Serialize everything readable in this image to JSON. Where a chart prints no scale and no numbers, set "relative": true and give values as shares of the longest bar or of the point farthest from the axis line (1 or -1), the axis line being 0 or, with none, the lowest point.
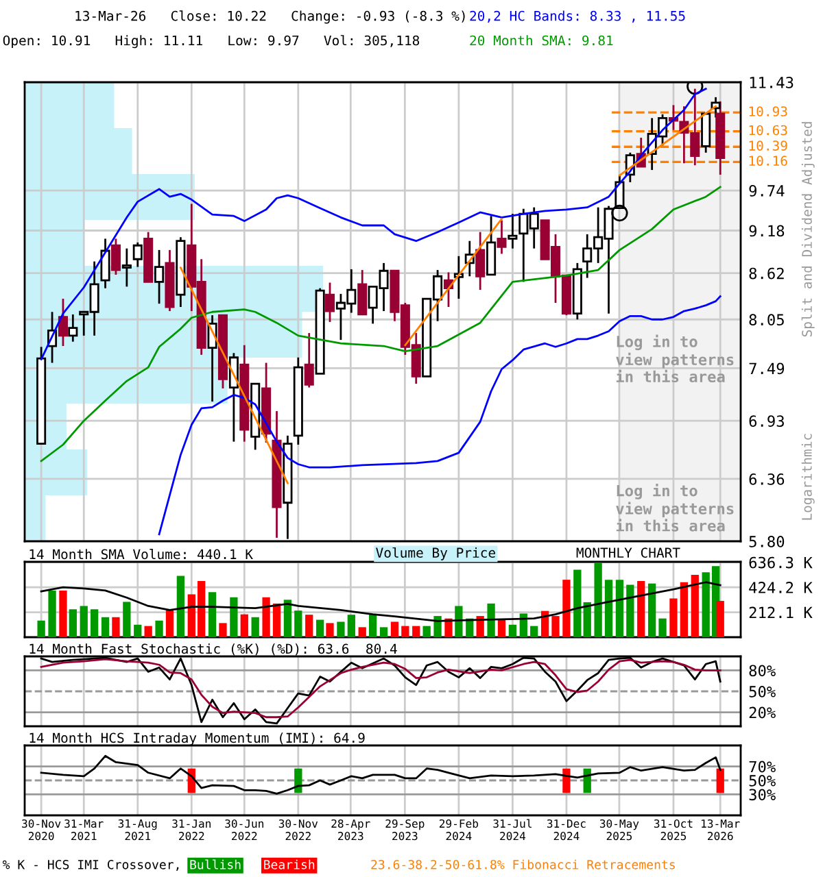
{
  "chart_data": [
    {
      "type": "candlestick",
      "title": "13-Mar-26   Close: 10.22   Change: -0.93 (-8.3 %)",
      "subtitle": "Open: 10.91   High: 11.11   Low: 9.97   Vol: 305,118",
      "ylabel": "Split and Dividend Adjusted",
      "x": [
        "2020-11-30",
        "2020-12-31",
        "2021-01-31",
        "2021-02-28",
        "2021-03-31",
        "2021-04-30",
        "2021-05-31",
        "2021-06-30",
        "2021-07-31",
        "2021-08-31",
        "2021-09-30",
        "2021-10-31",
        "2021-11-30",
        "2021-12-31",
        "2022-01-31",
        "2022-02-28",
        "2022-03-31",
        "2022-04-30",
        "2022-05-31",
        "2022-06-30",
        "2022-07-31",
        "2022-08-31",
        "2022-09-30",
        "2022-10-31",
        "2022-11-30",
        "2022-12-31",
        "2023-01-31",
        "2023-02-28",
        "2023-03-31",
        "2023-04-30",
        "2023-05-31",
        "2023-06-30",
        "2023-07-31",
        "2023-08-31",
        "2023-09-30",
        "2023-10-31",
        "2023-11-30",
        "2023-12-31",
        "2024-01-31",
        "2024-02-29",
        "2024-03-31",
        "2024-04-30",
        "2024-05-31",
        "2024-06-30",
        "2024-07-31",
        "2024-08-31",
        "2024-09-30",
        "2024-10-31",
        "2024-11-30",
        "2024-12-31",
        "2025-01-31",
        "2025-02-28",
        "2025-03-31",
        "2025-04-30",
        "2025-05-31",
        "2025-06-30",
        "2025-07-31",
        "2025-08-31",
        "2025-09-30",
        "2025-10-31",
        "2025-11-30",
        "2025-12-31",
        "2026-01-31",
        "2026-02-28",
        "2026-03-13"
      ],
      "ohlc": [
        [
          6.7,
          7.73,
          6.7,
          7.6
        ],
        [
          7.74,
          8.14,
          7.55,
          7.92
        ],
        [
          8.08,
          8.3,
          7.74,
          7.86
        ],
        [
          7.86,
          8.11,
          7.79,
          7.95
        ],
        [
          8.11,
          8.14,
          7.86,
          8.14
        ],
        [
          8.14,
          8.77,
          7.86,
          8.48
        ],
        [
          8.53,
          9.07,
          8.43,
          8.91
        ],
        [
          8.98,
          9.07,
          8.6,
          8.66
        ],
        [
          8.69,
          8.94,
          8.45,
          8.72
        ],
        [
          8.8,
          9.02,
          8.7,
          8.98
        ],
        [
          9.07,
          9.16,
          8.51,
          8.51
        ],
        [
          8.51,
          8.92,
          8.24,
          8.7
        ],
        [
          8.75,
          8.92,
          8.15,
          8.2
        ],
        [
          8.35,
          9.09,
          8.2,
          9.04
        ],
        [
          8.98,
          9.55,
          8.15,
          8.45
        ],
        [
          8.51,
          8.8,
          7.64,
          7.72
        ],
        [
          7.72,
          8.1,
          7.13,
          8.0
        ],
        [
          8.1,
          8.1,
          7.27,
          7.37
        ],
        [
          7.28,
          7.66,
          6.72,
          7.61
        ],
        [
          7.53,
          7.75,
          6.72,
          6.84
        ],
        [
          6.77,
          7.32,
          6.64,
          7.32
        ],
        [
          7.27,
          7.55,
          6.71,
          6.8
        ],
        [
          6.73,
          7.03,
          5.83,
          6.1
        ],
        [
          6.14,
          6.78,
          5.82,
          6.7
        ],
        [
          6.78,
          7.61,
          6.69,
          7.5
        ],
        [
          7.53,
          7.89,
          7.28,
          7.31
        ],
        [
          7.43,
          8.43,
          7.43,
          8.4
        ],
        [
          8.35,
          8.5,
          8.02,
          8.15
        ],
        [
          8.18,
          8.36,
          7.81,
          8.25
        ],
        [
          8.24,
          8.67,
          8.13,
          8.41
        ],
        [
          8.48,
          8.66,
          8.11,
          8.11
        ],
        [
          8.19,
          8.45,
          8.0,
          8.45
        ],
        [
          8.43,
          8.75,
          8.15,
          8.65
        ],
        [
          8.65,
          8.65,
          8.03,
          8.14
        ],
        [
          8.22,
          8.25,
          7.64,
          7.73
        ],
        [
          7.75,
          7.89,
          7.32,
          7.4
        ],
        [
          7.4,
          8.3,
          7.4,
          8.3
        ],
        [
          8.29,
          8.66,
          8.03,
          8.58
        ],
        [
          8.53,
          8.63,
          8.2,
          8.43
        ],
        [
          8.57,
          8.84,
          8.3,
          8.61
        ],
        [
          8.75,
          9.04,
          8.58,
          8.86
        ],
        [
          8.92,
          9.16,
          8.41,
          8.58
        ],
        [
          8.6,
          9.38,
          8.6,
          9.02
        ],
        [
          9.07,
          9.32,
          8.87,
          8.96
        ],
        [
          9.07,
          9.41,
          8.94,
          9.11
        ],
        [
          9.14,
          9.48,
          8.51,
          9.41
        ],
        [
          9.21,
          9.5,
          8.94,
          9.41
        ],
        [
          9.32,
          9.32,
          8.8,
          8.8
        ],
        [
          8.96,
          9.13,
          8.25,
          8.58
        ],
        [
          8.59,
          8.59,
          8.1,
          8.12
        ],
        [
          8.12,
          8.75,
          8.05,
          8.67
        ],
        [
          8.77,
          9.13,
          8.56,
          8.94
        ],
        [
          8.94,
          9.5,
          8.75,
          9.09
        ],
        [
          9.07,
          9.52,
          8.12,
          9.48
        ],
        [
          9.49,
          9.96,
          9.48,
          9.86
        ],
        [
          9.97,
          10.3,
          9.86,
          10.26
        ],
        [
          10.28,
          10.53,
          10.09,
          10.09
        ],
        [
          10.28,
          10.84,
          10.04,
          10.59
        ],
        [
          10.55,
          10.9,
          10.41,
          10.84
        ],
        [
          10.84,
          11.05,
          10.65,
          10.8
        ],
        [
          10.78,
          11.03,
          10.14,
          10.61
        ],
        [
          10.6,
          11.32,
          10.11,
          10.25
        ],
        [
          10.4,
          10.91,
          10.3,
          10.91
        ],
        [
          11.0,
          11.18,
          10.85,
          11.09
        ],
        [
          10.91,
          11.11,
          9.97,
          10.22
        ]
      ],
      "colors": [
        "#ffffff",
        "#ffffff",
        "#990033",
        "#ffffff",
        "#ffffff",
        "#ffffff",
        "#ffffff",
        "#990033",
        "#ffffff",
        "#ffffff",
        "#990033",
        "#ffffff",
        "#990033",
        "#ffffff",
        "#990033",
        "#990033",
        "#ffffff",
        "#990033",
        "#ffffff",
        "#990033",
        "#ffffff",
        "#990033",
        "#990033",
        "#ffffff",
        "#ffffff",
        "#990033",
        "#ffffff",
        "#990033",
        "#ffffff",
        "#ffffff",
        "#990033",
        "#ffffff",
        "#ffffff",
        "#990033",
        "#990033",
        "#990033",
        "#ffffff",
        "#ffffff",
        "#990033",
        "#ffffff",
        "#ffffff",
        "#990033",
        "#ffffff",
        "#990033",
        "#ffffff",
        "#ffffff",
        "#ffffff",
        "#990033",
        "#990033",
        "#990033",
        "#ffffff",
        "#ffffff",
        "#ffffff",
        "#ffffff",
        "#ffffff",
        "#ffffff",
        "#990033",
        "#ffffff",
        "#ffffff",
        "#990033",
        "#990033",
        "#990033",
        "#ffffff",
        "#ffffff",
        "#990033"
      ],
      "series": [
        {
          "type": "line",
          "name": "20,2 HC Bands: 8.33 , 11.55",
          "color": "#0000ff",
          "x": [
            "2020-11-30",
            "2021-01-31",
            "2021-03-31",
            "2021-07-31",
            "2021-08-31",
            "2021-10-31",
            "2021-11-30",
            "2021-12-31",
            "2022-01-31",
            "2022-03-31",
            "2022-05-31",
            "2022-06-30",
            "2022-08-31",
            "2022-09-30",
            "2022-10-31",
            "2022-11-30",
            "2023-01-31",
            "2023-03-31",
            "2023-05-31",
            "2023-07-31",
            "2023-08-31",
            "2023-10-31",
            "2023-12-31",
            "2024-02-29",
            "2024-04-30",
            "2024-06-30",
            "2024-08-31",
            "2024-10-31",
            "2024-12-31",
            "2025-02-28",
            "2025-04-30",
            "2025-05-31",
            "2025-06-30",
            "2025-07-31",
            "2025-09-30",
            "2025-11-30",
            "2025-12-31",
            "2026-01-31"
          ],
          "values": [
            7.59,
            8.12,
            8.44,
            9.36,
            9.58,
            9.76,
            9.65,
            9.69,
            9.61,
            9.4,
            9.38,
            9.31,
            9.47,
            9.63,
            9.67,
            9.63,
            9.49,
            9.36,
            9.25,
            9.25,
            9.13,
            9.04,
            9.16,
            9.29,
            9.43,
            9.36,
            9.41,
            9.45,
            9.47,
            9.5,
            9.65,
            9.84,
            10.02,
            10.26,
            10.65,
            10.97,
            11.23,
            11.32
          ]
        },
        {
          "type": "line",
          "color": "#0000ff",
          "x": [
            "2021-10-31",
            "2021-11-30",
            "2021-12-31",
            "2022-01-31",
            "2022-02-28",
            "2022-03-31",
            "2022-04-30",
            "2022-05-31",
            "2022-06-30",
            "2022-07-31",
            "2022-09-30",
            "2022-10-31",
            "2022-11-30",
            "2022-12-31",
            "2023-02-28",
            "2023-05-31",
            "2023-10-31",
            "2023-12-31",
            "2024-02-29",
            "2024-04-30",
            "2024-05-31",
            "2024-06-30",
            "2024-07-31",
            "2024-08-31",
            "2024-10-31",
            "2024-11-30",
            "2024-12-31",
            "2025-01-31",
            "2025-02-28",
            "2025-03-31",
            "2025-04-30",
            "2025-05-31",
            "2025-06-30",
            "2025-07-31",
            "2025-08-31",
            "2025-09-30",
            "2025-10-31",
            "2025-11-30",
            "2025-12-31",
            "2026-01-31",
            "2026-02-28",
            "2026-03-13"
          ],
          "values": [
            5.86,
            6.21,
            6.59,
            6.89,
            7.06,
            7.07,
            7.14,
            7.2,
            7.17,
            7.1,
            6.72,
            6.56,
            6.5,
            6.47,
            6.47,
            6.49,
            6.51,
            6.53,
            6.61,
            6.92,
            7.24,
            7.48,
            7.58,
            7.7,
            7.77,
            7.73,
            7.77,
            7.82,
            7.82,
            7.86,
            7.91,
            8.03,
            8.09,
            8.09,
            8.05,
            8.05,
            8.08,
            8.15,
            8.18,
            8.22,
            8.27,
            8.33
          ]
        },
        {
          "type": "line",
          "name": "20 Month SMA: 9.81",
          "color": "#009900",
          "x": [
            "2020-11-30",
            "2021-01-31",
            "2021-03-31",
            "2021-05-31",
            "2021-07-31",
            "2021-09-30",
            "2021-10-31",
            "2021-12-31",
            "2022-01-31",
            "2022-03-31",
            "2022-06-30",
            "2022-07-31",
            "2022-09-30",
            "2022-11-30",
            "2023-03-31",
            "2023-07-31",
            "2023-09-30",
            "2023-12-31",
            "2024-04-30",
            "2024-07-31",
            "2024-12-31",
            "2025-03-31",
            "2025-05-31",
            "2025-08-31",
            "2025-10-31",
            "2026-01-31",
            "2026-03-13"
          ],
          "values": [
            6.53,
            6.69,
            6.93,
            7.14,
            7.35,
            7.5,
            7.73,
            7.94,
            8.07,
            8.14,
            8.17,
            8.14,
            8.01,
            7.86,
            7.77,
            7.74,
            7.68,
            7.74,
            8.01,
            8.51,
            8.59,
            8.66,
            8.92,
            9.2,
            9.47,
            9.65,
            9.79
          ]
        },
        {
          "type": "line",
          "color": "#ff8000",
          "x": [
            "2021-12-31",
            "2022-10-31"
          ],
          "values": [
            8.69,
            6.32
          ]
        },
        {
          "type": "line",
          "color": "#ff8000",
          "x": [
            "2023-09-30",
            "2024-06-30"
          ],
          "values": [
            7.75,
            9.34
          ]
        },
        {
          "type": "line",
          "color": "#ff8000",
          "x": [
            "2025-05-31",
            "2026-02-28"
          ],
          "values": [
            9.96,
            11.03
          ]
        },
        {
          "type": "scatter",
          "marker": "circle",
          "color": "#000000",
          "x": [
            "2025-05-31",
            "2025-12-31"
          ],
          "values": [
            9.42,
            11.36
          ]
        }
      ],
      "log": "y",
      "ylim": [
        5.8,
        11.43
      ],
      "yticks": [
        11.43,
        9.74,
        9.18,
        8.62,
        8.05,
        7.49,
        6.93,
        6.36,
        {
          "value": 5.8,
          "label": "5.80"
        }
      ],
      "xlim": [
        "2020-10-14",
        "2026-05-10"
      ],
      "xticks": [
        {
          "value": "2020-11-30",
          "label": null
        },
        {
          "value": "2021-03-31",
          "label": null
        },
        {
          "value": "2021-08-31",
          "label": null
        },
        {
          "value": "2022-01-31",
          "label": null
        },
        {
          "value": "2022-06-30",
          "label": null
        },
        {
          "value": "2022-11-30",
          "label": null
        },
        {
          "value": "2023-04-28",
          "label": null
        },
        {
          "value": "2023-09-29",
          "label": null
        },
        {
          "value": "2024-02-29",
          "label": null
        },
        {
          "value": "2024-07-31",
          "label": null
        },
        {
          "value": "2024-12-31",
          "label": null
        },
        {
          "value": "2025-05-30",
          "label": null
        },
        {
          "value": "2025-10-31",
          "label": null
        },
        {
          "value": "2026-03-13",
          "label": null
        }
      ],
      "tick_labels": "y",
      "grid": true,
      "legend": "top right",
      "ref_lines": [
        {
          "axis": "y",
          "value": 10.93,
          "label": "10.93",
          "color": "#ff8000",
          "line_style": "dashed"
        },
        {
          "axis": "y",
          "value": 10.63,
          "label": "10.63",
          "color": "#ff8000",
          "line_style": "dashed"
        },
        {
          "axis": "y",
          "value": 10.39,
          "label": "10.39",
          "color": "#ff8000",
          "line_style": "dashed"
        },
        {
          "axis": "y",
          "value": 10.16,
          "label": "10.16",
          "color": "#ff8000",
          "line_style": "dashed"
        }
      ],
      "bands": [
        {
          "axis": "x",
          "from": "2025-05-30",
          "to": "2026-05-10",
          "color": "#f2f2f2"
        }
      ],
      "annotations": [
        "Log in to\nview patterns\nin this area",
        "Log in to\nview patterns\nin this area",
        "Logarithmic",
        "23.6-38.2-50-61.8% Fibonacci Retracements"
      ]
    },
    {
      "type": "bar",
      "orientation": "horizontal",
      "relative": true,
      "tick_labels": false,
      "color": "#c8f2fa",
      "categories": [
        null,
        null,
        null,
        null,
        null,
        null,
        null,
        null,
        null,
        null
      ],
      "values": [
        0.3,
        0.36,
        0.57,
        0.2,
        1,
        0.93,
        0.68,
        0.14,
        0.21,
        0.07
      ]
    },
    {
      "type": "bar",
      "title": "14 Month SMA Volume: 440.1 K",
      "annotations": [
        "Volume By Price",
        "MONTHLY CHART"
      ],
      "x": [
        "2020-11-30",
        "2020-12-31",
        "2021-01-31",
        "2021-02-28",
        "2021-03-31",
        "2021-04-30",
        "2021-05-31",
        "2021-06-30",
        "2021-07-31",
        "2021-08-31",
        "2021-09-30",
        "2021-10-31",
        "2021-11-30",
        "2021-12-31",
        "2022-01-31",
        "2022-02-28",
        "2022-03-31",
        "2022-04-30",
        "2022-05-31",
        "2022-06-30",
        "2022-07-31",
        "2022-08-31",
        "2022-09-30",
        "2022-10-31",
        "2022-11-30",
        "2022-12-31",
        "2023-01-31",
        "2023-02-28",
        "2023-03-31",
        "2023-04-30",
        "2023-05-31",
        "2023-06-30",
        "2023-07-31",
        "2023-08-31",
        "2023-09-30",
        "2023-10-31",
        "2023-11-30",
        "2023-12-31",
        "2024-01-31",
        "2024-02-29",
        "2024-03-31",
        "2024-04-30",
        "2024-05-31",
        "2024-06-30",
        "2024-07-31",
        "2024-08-31",
        "2024-09-30",
        "2024-10-31",
        "2024-11-30",
        "2024-12-31",
        "2025-01-31",
        "2025-02-28",
        "2025-03-31",
        "2025-04-30",
        "2025-05-31",
        "2025-06-30",
        "2025-07-31",
        "2025-08-31",
        "2025-09-30",
        "2025-10-31",
        "2025-11-30",
        "2025-12-31",
        "2026-01-31",
        "2026-02-28",
        "2026-03-13"
      ],
      "series": [
        {
          "type": "bar",
          "values": [
            141,
            396,
            396,
            237,
            265,
            237,
            170,
            170,
            300,
            106,
            95,
            141,
            230,
            520,
            364,
            477,
            382,
            120,
            339,
            194,
            170,
            339,
            286,
            318,
            226,
            191,
            148,
            120,
            131,
            191,
            85,
            191,
            85,
            131,
            95,
            95,
            95,
            180,
            159,
            265,
            159,
            180,
            286,
            156,
            106,
            201,
            95,
            223,
            180,
            488,
            573,
            297,
            629,
            488,
            488,
            445,
            477,
            456,
            159,
            329,
            467,
            530,
            551,
            604,
            308
          ],
          "colors": [
            "#009900",
            "#009900",
            "#ff0000",
            "#009900",
            "#009900",
            "#009900",
            "#009900",
            "#ff0000",
            "#009900",
            "#009900",
            "#ff0000",
            "#009900",
            "#ff0000",
            "#009900",
            "#ff0000",
            "#ff0000",
            "#009900",
            "#ff0000",
            "#009900",
            "#ff0000",
            "#009900",
            "#ff0000",
            "#ff0000",
            "#009900",
            "#009900",
            "#ff0000",
            "#009900",
            "#ff0000",
            "#009900",
            "#009900",
            "#ff0000",
            "#009900",
            "#009900",
            "#ff0000",
            "#ff0000",
            "#ff0000",
            "#009900",
            "#009900",
            "#ff0000",
            "#009900",
            "#009900",
            "#ff0000",
            "#009900",
            "#ff0000",
            "#009900",
            "#009900",
            "#009900",
            "#ff0000",
            "#ff0000",
            "#ff0000",
            "#009900",
            "#009900",
            "#009900",
            "#009900",
            "#009900",
            "#009900",
            "#ff0000",
            "#009900",
            "#009900",
            "#ff0000",
            "#ff0000",
            "#ff0000",
            "#009900",
            "#009900",
            "#ff0000"
          ]
        },
        {
          "type": "line",
          "color": "#000000",
          "x": [
            "2020-11-30",
            "2021-01-31",
            "2021-03-31",
            "2021-05-31",
            "2021-07-31",
            "2021-09-30",
            "2021-11-30",
            "2022-01-31",
            "2022-03-31",
            "2022-07-31",
            "2022-10-31",
            "2022-11-30",
            "2023-03-31",
            "2023-06-30",
            "2023-08-31",
            "2023-12-31",
            "2024-04-30",
            "2024-09-30",
            "2024-11-30",
            "2025-01-31",
            "2025-04-30",
            "2025-08-31",
            "2025-10-31",
            "2026-01-31",
            "2026-03-13"
          ],
          "values": [
            389,
            424,
            414,
            396,
            336,
            265,
            230,
            258,
            258,
            247,
            283,
            265,
            230,
            194,
            177,
            138,
            148,
            159,
            194,
            247,
            300,
            371,
            407,
            467,
            442
          ]
        }
      ],
      "ylim": [
        0,
        640
      ],
      "yticks": [
        {
          "value": 212.1,
          "label": "212.1 K"
        },
        {
          "value": 424.2,
          "label": "424.2 K"
        },
        {
          "value": 636.3,
          "label": "636.3 K"
        }
      ],
      "xlim": [
        "2020-10-14",
        "2026-05-10"
      ],
      "xticks": [
        {
          "value": "2020-11-30",
          "label": null
        },
        {
          "value": "2021-03-31",
          "label": null
        },
        {
          "value": "2021-08-31",
          "label": null
        },
        {
          "value": "2022-01-31",
          "label": null
        },
        {
          "value": "2022-06-30",
          "label": null
        },
        {
          "value": "2022-11-30",
          "label": null
        },
        {
          "value": "2023-04-28",
          "label": null
        },
        {
          "value": "2023-09-29",
          "label": null
        },
        {
          "value": "2024-02-29",
          "label": null
        },
        {
          "value": "2024-07-31",
          "label": null
        },
        {
          "value": "2024-12-31",
          "label": null
        },
        {
          "value": "2025-05-30",
          "label": null
        },
        {
          "value": "2025-10-31",
          "label": null
        },
        {
          "value": "2026-03-13",
          "label": null
        }
      ],
      "tick_labels": "y",
      "grid": true
    },
    {
      "type": "line",
      "title": "14 Month Fast Stochastic (%K) (%D): 63.6  80.4",
      "series": [
        {
          "type": "line",
          "color": "#000000",
          "x": [
            "2020-11-30",
            "2020-12-31",
            "2021-02-28",
            "2021-03-31",
            "2021-05-31",
            "2021-07-31",
            "2021-08-31",
            "2021-09-30",
            "2021-10-31",
            "2021-11-30",
            "2021-12-31",
            "2022-01-31",
            "2022-02-28",
            "2022-03-31",
            "2022-04-30",
            "2022-05-31",
            "2022-06-30",
            "2022-07-31",
            "2022-08-31",
            "2022-09-30",
            "2022-10-31",
            "2022-11-30",
            "2022-12-31",
            "2023-01-31",
            "2023-02-28",
            "2023-03-31",
            "2023-04-30",
            "2023-05-31",
            "2023-07-31",
            "2023-08-31",
            "2023-09-30",
            "2023-10-31",
            "2023-11-30",
            "2023-12-31",
            "2024-01-31",
            "2024-02-29",
            "2024-03-31",
            "2024-04-30",
            "2024-05-31",
            "2024-06-30",
            "2024-07-31",
            "2024-08-31",
            "2024-09-30",
            "2024-10-31",
            "2024-11-30",
            "2024-12-31",
            "2025-01-31",
            "2025-02-28",
            "2025-03-31",
            "2025-04-30",
            "2025-05-31",
            "2025-06-30",
            "2025-07-31",
            "2025-08-31",
            "2025-09-30",
            "2025-10-31",
            "2025-11-30",
            "2025-12-31",
            "2026-01-31",
            "2026-02-28",
            "2026-03-13"
          ],
          "values": [
            97,
            92,
            95,
            96,
            98,
            92,
            97,
            78,
            84,
            67,
            97,
            59,
            6,
            38,
            13,
            33,
            10,
            24,
            6,
            4,
            26,
            47,
            44,
            71,
            64,
            78,
            91,
            83,
            97,
            87,
            70,
            59,
            87,
            92,
            78,
            70,
            83,
            69,
            85,
            83,
            89,
            98,
            97,
            78,
            64,
            36,
            51,
            66,
            76,
            95,
            97,
            98,
            84,
            92,
            97,
            92,
            87,
            67,
            89,
            93,
            64
          ]
        },
        {
          "type": "line",
          "color": "#990033",
          "x": [
            "2020-11-30",
            "2021-01-31",
            "2021-03-31",
            "2021-05-31",
            "2021-07-31",
            "2021-09-30",
            "2021-10-31",
            "2021-11-30",
            "2021-12-31",
            "2022-01-31",
            "2022-02-28",
            "2022-03-31",
            "2022-04-30",
            "2022-05-31",
            "2022-06-30",
            "2022-07-31",
            "2022-08-31",
            "2022-09-30",
            "2022-10-31",
            "2022-11-30",
            "2022-12-31",
            "2023-01-31",
            "2023-02-28",
            "2023-03-31",
            "2023-04-30",
            "2023-05-31",
            "2023-07-31",
            "2023-08-31",
            "2023-09-30",
            "2023-10-31",
            "2023-11-30",
            "2023-12-31",
            "2024-01-31",
            "2024-03-31",
            "2024-05-31",
            "2024-06-30",
            "2024-08-31",
            "2024-09-30",
            "2024-10-31",
            "2024-11-30",
            "2024-12-31",
            "2025-01-31",
            "2025-02-28",
            "2025-03-31",
            "2025-04-30",
            "2025-05-31",
            "2025-06-30",
            "2025-07-31",
            "2025-08-31",
            "2025-09-30",
            "2025-10-31",
            "2025-11-30",
            "2025-12-31",
            "2026-01-31",
            "2026-02-28",
            "2026-03-13"
          ],
          "values": [
            85,
            91,
            93,
            96,
            93,
            91,
            88,
            77,
            76,
            67,
            45,
            28,
            19,
            21,
            20,
            19,
            13,
            13,
            14,
            27,
            42,
            57,
            66,
            76,
            81,
            85,
            91,
            89,
            82,
            69,
            70,
            77,
            81,
            76,
            81,
            80,
            89,
            92,
            89,
            73,
            53,
            49,
            51,
            64,
            81,
            93,
            95,
            91,
            92,
            93,
            92,
            88,
            81,
            80,
            80,
            80
          ]
        }
      ],
      "ylim": [
        0,
        100
      ],
      "yticks": [
        {
          "value": 20,
          "label": "20%"
        },
        {
          "value": 50,
          "label": "50%"
        },
        {
          "value": 80,
          "label": "80%"
        }
      ],
      "ref_lines": [
        {
          "axis": "y",
          "value": 80,
          "color": "#999999",
          "line_style": "solid"
        },
        {
          "axis": "y",
          "value": 50,
          "color": "#999999",
          "line_style": "dashed"
        },
        {
          "axis": "y",
          "value": 20,
          "color": "#999999",
          "line_style": "solid"
        }
      ],
      "xlim": [
        "2020-10-14",
        "2026-05-10"
      ],
      "xticks": [
        {
          "value": "2020-11-30",
          "label": null
        },
        {
          "value": "2021-03-31",
          "label": null
        },
        {
          "value": "2021-08-31",
          "label": null
        },
        {
          "value": "2022-01-31",
          "label": null
        },
        {
          "value": "2022-06-30",
          "label": null
        },
        {
          "value": "2022-11-30",
          "label": null
        },
        {
          "value": "2023-04-28",
          "label": null
        },
        {
          "value": "2023-09-29",
          "label": null
        },
        {
          "value": "2024-02-29",
          "label": null
        },
        {
          "value": "2024-07-31",
          "label": null
        },
        {
          "value": "2024-12-31",
          "label": null
        },
        {
          "value": "2025-05-30",
          "label": null
        },
        {
          "value": "2025-10-31",
          "label": null
        },
        {
          "value": "2026-03-13",
          "label": null
        }
      ],
      "tick_labels": "y",
      "grid": "x"
    },
    {
      "type": "line",
      "title": "14 Month HCS Intraday Momentum (IMI): 64.9",
      "legend": "bottom",
      "legend_title": "% K - HCS IMI Crossover,",
      "series": [
        {
          "type": "line",
          "color": "#000000",
          "x": [
            "2020-11-30",
            "2021-01-31",
            "2021-03-31",
            "2021-04-30",
            "2021-05-31",
            "2021-06-30",
            "2021-08-31",
            "2021-09-30",
            "2021-11-30",
            "2021-12-31",
            "2022-01-31",
            "2022-02-28",
            "2022-03-31",
            "2022-05-31",
            "2022-06-30",
            "2022-07-31",
            "2022-08-31",
            "2022-09-30",
            "2022-10-31",
            "2022-11-30",
            "2022-12-31",
            "2023-01-31",
            "2023-02-28",
            "2023-03-31",
            "2023-04-30",
            "2023-05-31",
            "2023-06-30",
            "2023-08-31",
            "2023-09-30",
            "2023-10-31",
            "2023-11-30",
            "2023-12-31",
            "2024-01-31",
            "2024-03-31",
            "2024-05-31",
            "2024-07-31",
            "2024-09-30",
            "2024-11-30",
            "2025-01-31",
            "2025-03-31",
            "2025-05-31",
            "2025-06-30",
            "2025-07-31",
            "2025-09-30",
            "2025-11-30",
            "2025-12-31",
            "2026-01-31",
            "2026-02-28",
            "2026-03-13"
          ],
          "values": [
            61,
            58,
            56,
            67,
            85,
            76,
            72,
            61,
            53,
            67,
            56,
            39,
            43,
            42,
            36,
            36,
            35,
            31,
            36,
            42,
            43,
            50,
            44,
            50,
            56,
            53,
            58,
            58,
            53,
            53,
            67,
            65,
            61,
            53,
            57,
            56,
            57,
            59,
            54,
            60,
            61,
            69,
            64,
            69,
            64,
            65,
            75,
            83,
            65
          ]
        },
        {
          "type": "bar",
          "name": "Bullish",
          "color": "#009900",
          "x": [
            "2022-11-30",
            "2025-02-28"
          ],
          "base": [
            32,
            32
          ],
          "values": [
            35,
            35
          ]
        },
        {
          "type": "bar",
          "name": "Bearish",
          "color": "#ff0000",
          "x": [
            "2022-01-31",
            "2024-12-31",
            "2026-03-13"
          ],
          "base": [
            32,
            32,
            32
          ],
          "values": [
            35,
            35,
            35
          ]
        }
      ],
      "ylim": [
        0,
        100
      ],
      "yticks": [
        {
          "value": 30,
          "label": "30%"
        },
        {
          "value": 50,
          "label": "50%"
        },
        {
          "value": 70,
          "label": "70%"
        }
      ],
      "ref_lines": [
        {
          "axis": "y",
          "value": 70,
          "color": "#999999",
          "line_style": "solid"
        },
        {
          "axis": "y",
          "value": 50,
          "color": "#999999",
          "line_style": "dashed"
        },
        {
          "axis": "y",
          "value": 30,
          "color": "#999999",
          "line_style": "solid"
        }
      ],
      "xlim": [
        "2020-10-14",
        "2026-05-10"
      ],
      "xticks": [
        {
          "value": "2020-11-30",
          "label": "30-Nov\n2020"
        },
        {
          "value": "2021-03-31",
          "label": "31-Mar\n2021"
        },
        {
          "value": "2021-08-31",
          "label": "31-Aug\n2021"
        },
        {
          "value": "2022-01-31",
          "label": "31-Jan\n2022"
        },
        {
          "value": "2022-06-30",
          "label": "30-Jun\n2022"
        },
        {
          "value": "2022-11-30",
          "label": "30-Nov\n2022"
        },
        {
          "value": "2023-04-28",
          "label": "28-Apr\n2023"
        },
        {
          "value": "2023-09-29",
          "label": "29-Sep\n2023"
        },
        {
          "value": "2024-02-29",
          "label": "29-Feb\n2024"
        },
        {
          "value": "2024-07-31",
          "label": "31-Jul\n2024"
        },
        {
          "value": "2024-12-31",
          "label": "31-Dec\n2024"
        },
        {
          "value": "2025-05-30",
          "label": "30-May\n2025"
        },
        {
          "value": "2025-10-31",
          "label": "31-Oct\n2025"
        },
        {
          "value": "2026-03-13",
          "label": "13-Mar\n2026"
        }
      ],
      "grid": "x"
    }
  ]
}
